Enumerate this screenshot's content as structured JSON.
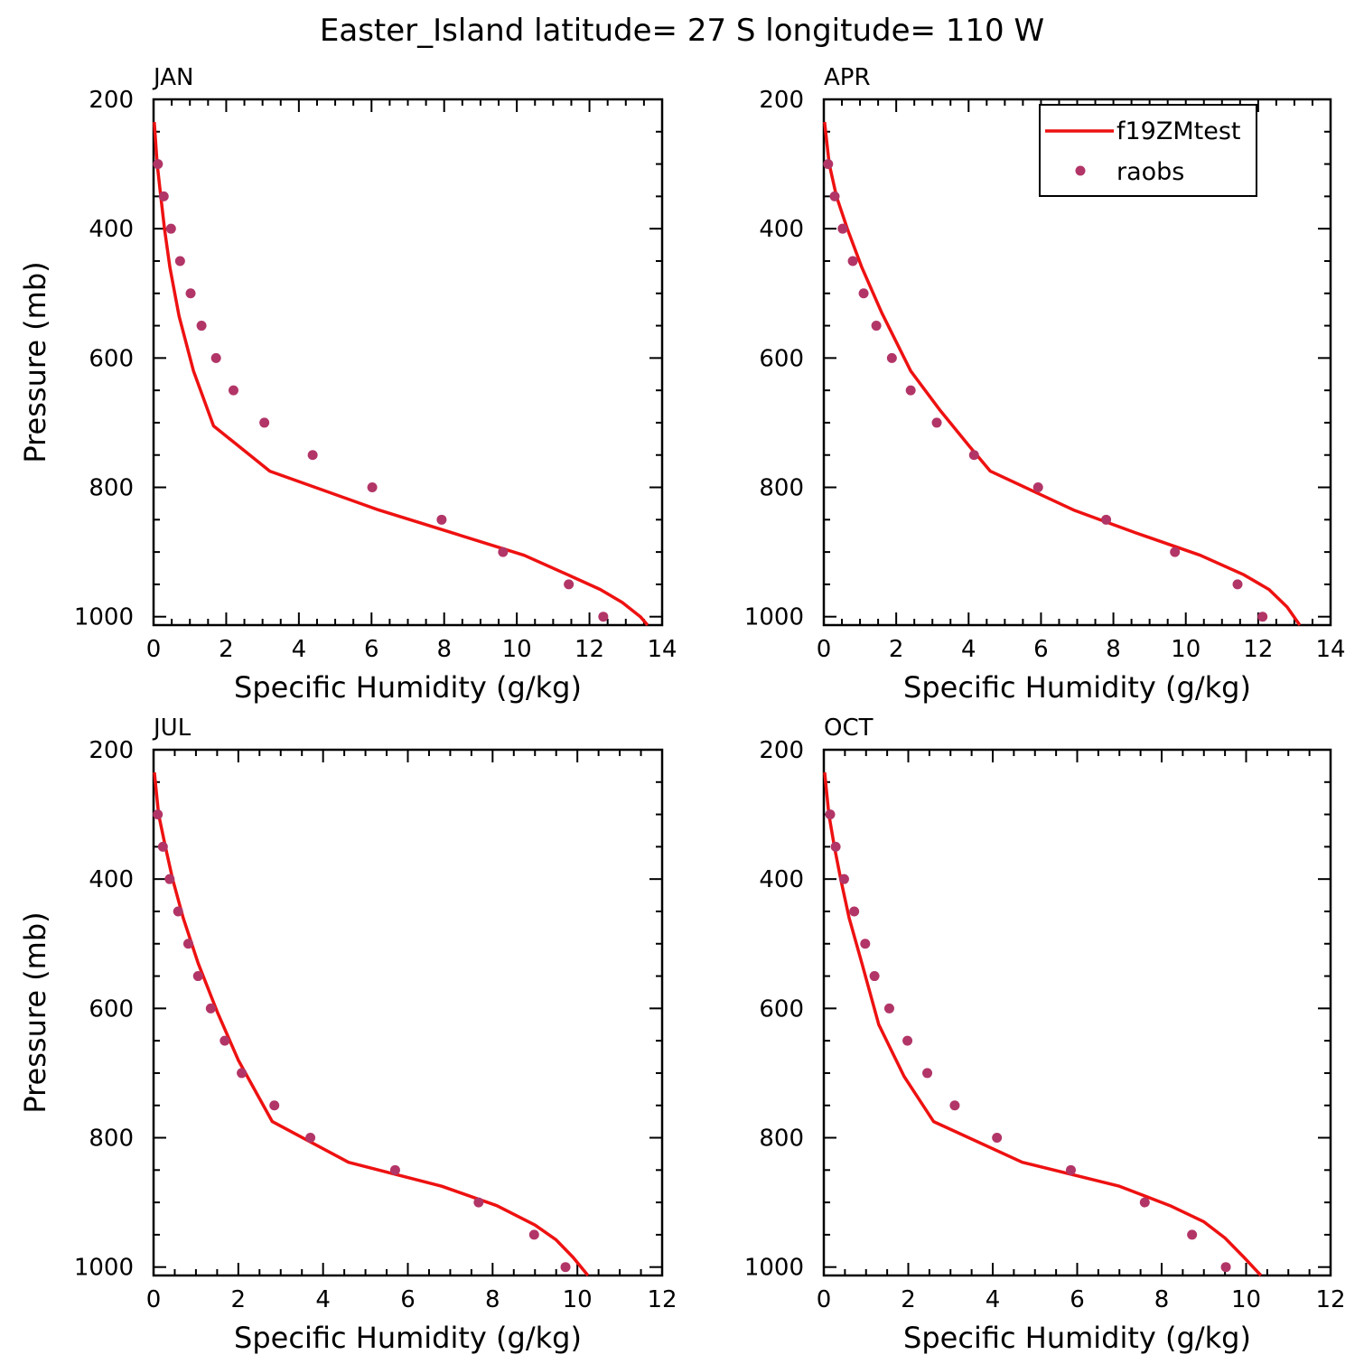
{
  "title": "Easter_Island  latitude= 27 S longitude= 110 W",
  "legend": {
    "model_label": "f19ZMtest",
    "obs_label": "raobs"
  },
  "colors": {
    "model_line": "#ee1111",
    "obs_marker": "#b23567"
  },
  "chart_data": [
    {
      "type": "line",
      "panel": "JAN",
      "xlabel": "Specific Humidity (g/kg)",
      "ylabel": "Pressure (mb)",
      "xlim": [
        0,
        14
      ],
      "ylim": [
        1013,
        200
      ],
      "y_inverted": true,
      "xticks": [
        "0",
        "2",
        "4",
        "6",
        "8",
        "10",
        "12",
        "14"
      ],
      "yticks": [
        "200",
        "400",
        "600",
        "800",
        "1000"
      ],
      "series": [
        {
          "name": "f19ZMtest",
          "kind": "line",
          "x": [
            0.02,
            0.1,
            0.2,
            0.3,
            0.45,
            0.7,
            1.1,
            1.65,
            3.2,
            6.2,
            8.2,
            10.2,
            11.4,
            12.3,
            12.9,
            13.4,
            13.6
          ],
          "y": [
            235,
            300,
            350,
            400,
            460,
            535,
            620,
            705,
            775,
            835,
            870,
            905,
            935,
            958,
            978,
            1000,
            1013
          ]
        },
        {
          "name": "raobs",
          "kind": "scatter",
          "x": [
            0.12,
            0.28,
            0.48,
            0.73,
            1.02,
            1.32,
            1.72,
            2.2,
            3.05,
            4.38,
            6.02,
            7.93,
            9.62,
            11.43,
            12.38
          ],
          "y": [
            300,
            350,
            400,
            450,
            500,
            550,
            600,
            650,
            700,
            750,
            800,
            850,
            900,
            950,
            1000
          ]
        }
      ]
    },
    {
      "type": "line",
      "panel": "APR",
      "xlabel": "Specific Humidity (g/kg)",
      "ylabel": "",
      "xlim": [
        0,
        14
      ],
      "ylim": [
        1013,
        200
      ],
      "y_inverted": true,
      "xticks": [
        "0",
        "2",
        "4",
        "6",
        "8",
        "10",
        "12",
        "14"
      ],
      "yticks": [
        "200",
        "400",
        "600",
        "800",
        "1000"
      ],
      "series": [
        {
          "name": "f19ZMtest",
          "kind": "line",
          "x": [
            0.02,
            0.15,
            0.35,
            0.65,
            1.05,
            1.6,
            2.4,
            3.2,
            4.0,
            4.6,
            6.9,
            8.6,
            10.4,
            11.6,
            12.3,
            12.8,
            13.15
          ],
          "y": [
            235,
            300,
            350,
            400,
            460,
            530,
            620,
            680,
            735,
            775,
            835,
            870,
            905,
            935,
            958,
            985,
            1013
          ]
        },
        {
          "name": "raobs",
          "kind": "scatter",
          "x": [
            0.12,
            0.3,
            0.52,
            0.8,
            1.1,
            1.45,
            1.88,
            2.4,
            3.12,
            4.15,
            5.92,
            7.8,
            9.7,
            11.43,
            12.12
          ],
          "y": [
            300,
            350,
            400,
            450,
            500,
            550,
            600,
            650,
            700,
            750,
            800,
            850,
            900,
            950,
            1000
          ]
        }
      ]
    },
    {
      "type": "line",
      "panel": "JUL",
      "xlabel": "Specific Humidity (g/kg)",
      "ylabel": "Pressure (mb)",
      "xlim": [
        0,
        12
      ],
      "ylim": [
        1013,
        200
      ],
      "y_inverted": true,
      "xticks": [
        "0",
        "2",
        "4",
        "6",
        "8",
        "10",
        "12"
      ],
      "yticks": [
        "200",
        "400",
        "600",
        "800",
        "1000"
      ],
      "series": [
        {
          "name": "f19ZMtest",
          "kind": "line",
          "x": [
            0.02,
            0.12,
            0.28,
            0.45,
            0.7,
            1.05,
            1.5,
            2.0,
            2.8,
            4.6,
            6.8,
            8.1,
            9.0,
            9.5,
            9.9,
            10.25
          ],
          "y": [
            235,
            300,
            350,
            400,
            460,
            530,
            605,
            680,
            775,
            838,
            875,
            905,
            935,
            958,
            985,
            1013
          ]
        },
        {
          "name": "raobs",
          "kind": "scatter",
          "x": [
            0.1,
            0.22,
            0.38,
            0.58,
            0.82,
            1.05,
            1.35,
            1.68,
            2.08,
            2.85,
            3.7,
            5.7,
            7.67,
            8.98,
            9.72
          ],
          "y": [
            300,
            350,
            400,
            450,
            500,
            550,
            600,
            650,
            700,
            750,
            800,
            850,
            900,
            950,
            1000
          ]
        }
      ]
    },
    {
      "type": "line",
      "panel": "OCT",
      "xlabel": "Specific Humidity (g/kg)",
      "ylabel": "",
      "xlim": [
        0,
        12
      ],
      "ylim": [
        1013,
        200
      ],
      "y_inverted": true,
      "xticks": [
        "0",
        "2",
        "4",
        "6",
        "8",
        "10",
        "12"
      ],
      "yticks": [
        "200",
        "400",
        "600",
        "800",
        "1000"
      ],
      "series": [
        {
          "name": "f19ZMtest",
          "kind": "line",
          "x": [
            0.02,
            0.12,
            0.25,
            0.4,
            0.6,
            0.9,
            1.3,
            1.9,
            2.6,
            4.7,
            7.0,
            8.2,
            9.0,
            9.5,
            9.95,
            10.35
          ],
          "y": [
            235,
            300,
            350,
            400,
            460,
            530,
            625,
            705,
            775,
            838,
            875,
            905,
            930,
            955,
            985,
            1013
          ]
        },
        {
          "name": "raobs",
          "kind": "scatter",
          "x": [
            0.15,
            0.28,
            0.48,
            0.72,
            0.98,
            1.2,
            1.55,
            1.98,
            2.45,
            3.1,
            4.1,
            5.85,
            7.6,
            8.72,
            9.52
          ],
          "y": [
            300,
            350,
            400,
            450,
            500,
            550,
            600,
            650,
            700,
            750,
            800,
            850,
            900,
            950,
            1000
          ]
        }
      ]
    }
  ]
}
